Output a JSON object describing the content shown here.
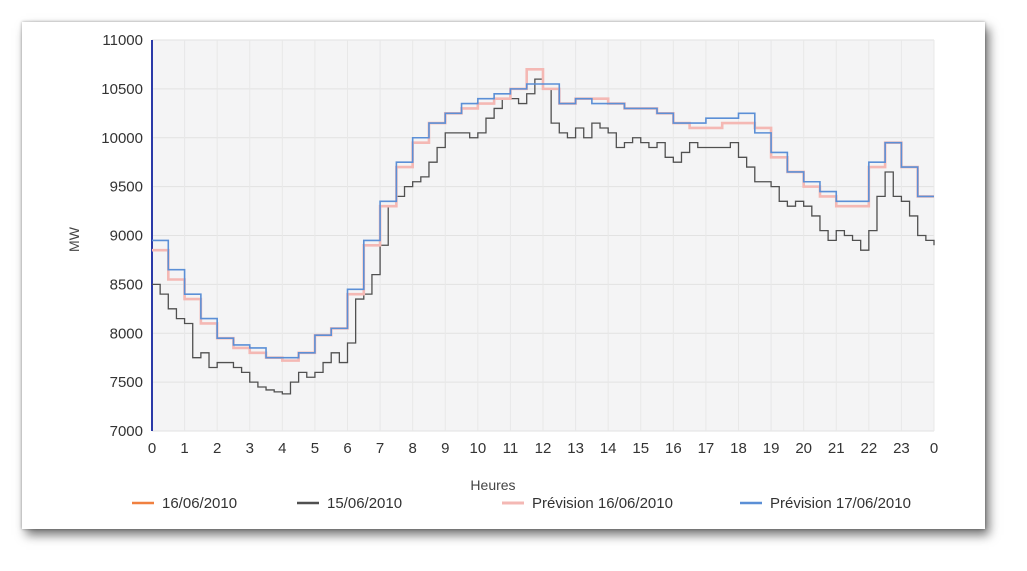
{
  "chart_data": {
    "type": "line",
    "title": "",
    "xlabel": "Heures",
    "ylabel": "MW",
    "ylim": [
      7000,
      11000
    ],
    "xlim": [
      0,
      24
    ],
    "y_ticks": [
      7000,
      7500,
      8000,
      8500,
      9000,
      9500,
      10000,
      10500,
      11000
    ],
    "x_tick_labels": [
      "0",
      "1",
      "2",
      "3",
      "4",
      "5",
      "6",
      "7",
      "8",
      "9",
      "10",
      "11",
      "12",
      "13",
      "14",
      "15",
      "16",
      "17",
      "18",
      "19",
      "20",
      "21",
      "22",
      "23",
      "0"
    ],
    "grid": true,
    "legend_position": "bottom",
    "series": [
      {
        "name": "16/06/2010",
        "color": "#f08040",
        "step": "post",
        "x": [],
        "values": []
      },
      {
        "name": "15/06/2010",
        "color": "#505050",
        "step": "post",
        "x": [
          0,
          0.25,
          0.5,
          0.75,
          1,
          1.25,
          1.5,
          1.75,
          2,
          2.25,
          2.5,
          2.75,
          3,
          3.25,
          3.5,
          3.75,
          4,
          4.25,
          4.5,
          4.75,
          5,
          5.25,
          5.5,
          5.75,
          6,
          6.25,
          6.5,
          6.75,
          7,
          7.25,
          7.5,
          7.75,
          8,
          8.25,
          8.5,
          8.75,
          9,
          9.25,
          9.5,
          9.75,
          10,
          10.25,
          10.5,
          10.75,
          11,
          11.25,
          11.5,
          11.75,
          12,
          12.25,
          12.5,
          12.75,
          13,
          13.25,
          13.5,
          13.75,
          14,
          14.25,
          14.5,
          14.75,
          15,
          15.25,
          15.5,
          15.75,
          16,
          16.25,
          16.5,
          16.75,
          17,
          17.25,
          17.5,
          17.75,
          18,
          18.25,
          18.5,
          18.75,
          19,
          19.25,
          19.5,
          19.75,
          20,
          20.25,
          20.5,
          20.75,
          21,
          21.25,
          21.5,
          21.75,
          22,
          22.25,
          22.5,
          22.75,
          23,
          23.25,
          23.5,
          23.75,
          24
        ],
        "values": [
          8500,
          8400,
          8250,
          8150,
          8100,
          7750,
          7800,
          7650,
          7700,
          7700,
          7650,
          7600,
          7500,
          7450,
          7420,
          7400,
          7380,
          7500,
          7600,
          7550,
          7600,
          7700,
          7800,
          7700,
          7900,
          8350,
          8400,
          8600,
          8900,
          9300,
          9400,
          9500,
          9550,
          9600,
          9750,
          9900,
          10050,
          10050,
          10050,
          10000,
          10050,
          10200,
          10300,
          10400,
          10400,
          10350,
          10450,
          10600,
          10500,
          10150,
          10050,
          10000,
          10100,
          10000,
          10150,
          10100,
          10050,
          9900,
          9950,
          10000,
          9950,
          9900,
          9950,
          9800,
          9750,
          9850,
          9950,
          9900,
          9900,
          9900,
          9900,
          9950,
          9800,
          9700,
          9550,
          9550,
          9500,
          9350,
          9300,
          9350,
          9300,
          9200,
          9050,
          8950,
          9050,
          9000,
          8950,
          8850,
          9050,
          9400,
          9650,
          9400,
          9350,
          9200,
          9000,
          8950,
          8900
        ]
      },
      {
        "name": "Prévision 16/06/2010",
        "color": "#f4b8b4",
        "step": "post",
        "x": [
          0,
          0.5,
          1,
          1.5,
          2,
          2.5,
          3,
          3.5,
          4,
          4.5,
          5,
          5.5,
          6,
          6.5,
          7,
          7.5,
          8,
          8.5,
          9,
          9.5,
          10,
          10.5,
          11,
          11.5,
          12,
          12.5,
          13,
          13.5,
          14,
          14.5,
          15,
          15.5,
          16,
          16.5,
          17,
          17.5,
          18,
          18.5,
          19,
          19.5,
          20,
          20.5,
          21,
          21.5,
          22,
          22.5,
          23,
          23.5,
          24
        ],
        "values": [
          8850,
          8550,
          8350,
          8100,
          7950,
          7850,
          7800,
          7750,
          7720,
          7800,
          7980,
          8050,
          8400,
          8900,
          9300,
          9700,
          9950,
          10150,
          10250,
          10300,
          10350,
          10400,
          10500,
          10700,
          10500,
          10350,
          10400,
          10400,
          10350,
          10300,
          10300,
          10250,
          10150,
          10100,
          10100,
          10150,
          10150,
          10100,
          9800,
          9650,
          9500,
          9400,
          9300,
          9300,
          9700,
          9950,
          9700,
          9400,
          9400
        ]
      },
      {
        "name": "Prévision 17/06/2010",
        "color": "#5b8fd6",
        "step": "post",
        "x": [
          0,
          0.5,
          1,
          1.5,
          2,
          2.5,
          3,
          3.5,
          4,
          4.5,
          5,
          5.5,
          6,
          6.5,
          7,
          7.5,
          8,
          8.5,
          9,
          9.5,
          10,
          10.5,
          11,
          11.5,
          12,
          12.5,
          13,
          13.5,
          14,
          14.5,
          15,
          15.5,
          16,
          16.5,
          17,
          17.5,
          18,
          18.5,
          19,
          19.5,
          20,
          20.5,
          21,
          21.5,
          22,
          22.5,
          23,
          23.5,
          24
        ],
        "values": [
          8950,
          8650,
          8400,
          8150,
          7950,
          7880,
          7850,
          7750,
          7750,
          7800,
          7980,
          8050,
          8450,
          8950,
          9350,
          9750,
          10000,
          10150,
          10250,
          10350,
          10400,
          10450,
          10500,
          10550,
          10550,
          10350,
          10400,
          10350,
          10350,
          10300,
          10300,
          10250,
          10150,
          10150,
          10200,
          10200,
          10250,
          10050,
          9850,
          9650,
          9550,
          9450,
          9350,
          9350,
          9750,
          9950,
          9700,
          9400,
          9400
        ]
      }
    ]
  }
}
